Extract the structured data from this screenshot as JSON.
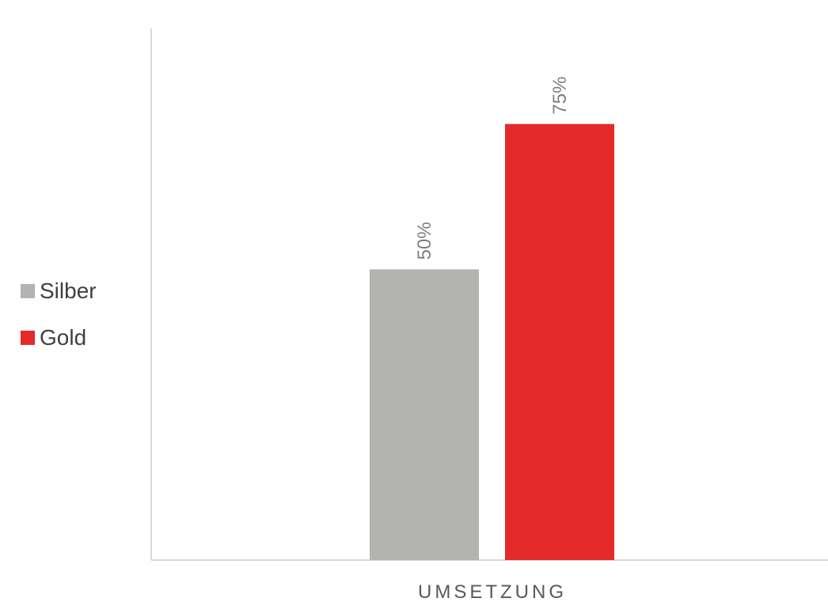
{
  "chart_data": {
    "type": "bar",
    "categories": [
      "UMSETZUNG"
    ],
    "series": [
      {
        "name": "Silber",
        "values": [
          50
        ],
        "color": "#b3b3b2",
        "data_label": "50%"
      },
      {
        "name": "Gold",
        "values": [
          75
        ],
        "color": "#e52a2c",
        "data_label": "75%"
      }
    ],
    "title": "",
    "xlabel": "",
    "ylabel": "",
    "ylim": [
      0,
      80
    ],
    "grid": false,
    "legend_position": "left",
    "axis_color": "#d9d9d9",
    "label_color": "#7f7f7f"
  }
}
